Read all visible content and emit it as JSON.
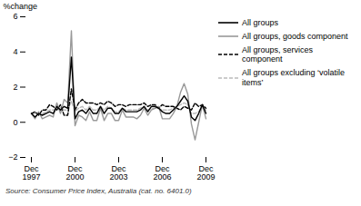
{
  "chart_data": {
    "type": "line",
    "y_label": "%change",
    "source": "Source: Consumer Price Index, Australia (cat. no. 6401.0)",
    "categories": [
      "Dec\n1997",
      null,
      null,
      null,
      null,
      null,
      null,
      null,
      null,
      null,
      null,
      null,
      "Dec\n2000",
      null,
      null,
      null,
      null,
      null,
      null,
      null,
      null,
      null,
      null,
      null,
      "Dec\n2003",
      null,
      null,
      null,
      null,
      null,
      null,
      null,
      null,
      null,
      null,
      null,
      "Dec\n2006",
      null,
      null,
      null,
      null,
      null,
      null,
      null,
      null,
      null,
      null,
      null,
      "Dec\n2009"
    ],
    "ylim": [
      -2,
      6
    ],
    "yticks": [
      -2,
      0,
      2,
      4,
      6
    ],
    "grid": false,
    "legend": "right",
    "series": [
      {
        "name": "All groups",
        "color": "#000000",
        "line_style": "solid",
        "values": [
          0.5,
          0.3,
          0.5,
          0.4,
          0.5,
          0.6,
          0.5,
          0.9,
          0.7,
          0.9,
          0.8,
          3.7,
          0.2,
          0.6,
          0.7,
          0.5,
          0.8,
          0.5,
          0.5,
          0.9,
          0.5,
          0.8,
          0.8,
          0.5,
          0.5,
          0.8,
          0.6,
          0.6,
          0.6,
          0.6,
          0.7,
          0.9,
          0.6,
          0.9,
          0.9,
          0.8,
          0.6,
          0.5,
          0.5,
          0.7,
          0.9,
          1.2,
          1.5,
          1.2,
          0.3,
          0.1,
          0.5,
          1.0,
          0.5
        ]
      },
      {
        "name": "All groups, goods component",
        "color": "#999999",
        "line_style": "solid",
        "values": [
          0.5,
          0.2,
          0.6,
          0.2,
          0.3,
          0.4,
          0.3,
          1.1,
          0.5,
          1.3,
          1.1,
          5.2,
          -0.2,
          0.4,
          0.3,
          0.1,
          0.6,
          0.1,
          0.1,
          0.8,
          0.1,
          0.5,
          0.5,
          0.1,
          0.1,
          0.7,
          0.3,
          0.3,
          0.3,
          0.2,
          0.4,
          0.8,
          0.4,
          0.7,
          0.8,
          0.9,
          0.2,
          0.2,
          0.2,
          0.5,
          0.9,
          1.7,
          2.2,
          1.6,
          -0.1,
          -1.0,
          0.0,
          1.0,
          0.2
        ]
      },
      {
        "name": "All groups, services component",
        "color": "#000000",
        "line_style": "dashed",
        "values": [
          0.5,
          0.6,
          0.4,
          0.7,
          0.7,
          1.0,
          0.9,
          0.7,
          1.0,
          0.4,
          0.4,
          1.9,
          0.7,
          1.1,
          1.3,
          1.1,
          1.1,
          1.1,
          1.0,
          1.1,
          1.0,
          1.2,
          1.1,
          0.9,
          1.0,
          1.0,
          0.9,
          1.0,
          1.0,
          1.0,
          1.0,
          1.1,
          0.9,
          1.0,
          1.0,
          0.8,
          1.0,
          0.9,
          0.9,
          0.9,
          0.8,
          0.7,
          0.9,
          0.8,
          0.7,
          1.1,
          0.9,
          1.0,
          0.8
        ]
      },
      {
        "name": "All groups excluding ‘volatile items’",
        "color": "#bbbbbb",
        "line_style": "dashed",
        "values": [
          0.5,
          0.5,
          0.5,
          0.5,
          0.6,
          0.7,
          0.7,
          0.8,
          0.8,
          0.7,
          0.7,
          1.2,
          0.6,
          0.8,
          0.9,
          0.7,
          0.9,
          0.7,
          0.7,
          0.9,
          0.7,
          0.9,
          0.8,
          0.6,
          0.6,
          0.8,
          0.7,
          0.7,
          0.7,
          0.7,
          0.8,
          0.9,
          0.7,
          0.8,
          0.8,
          0.8,
          0.7,
          0.7,
          0.7,
          0.8,
          0.9,
          1.0,
          1.1,
          1.0,
          0.5,
          0.5,
          0.6,
          0.9,
          0.7
        ]
      }
    ]
  }
}
